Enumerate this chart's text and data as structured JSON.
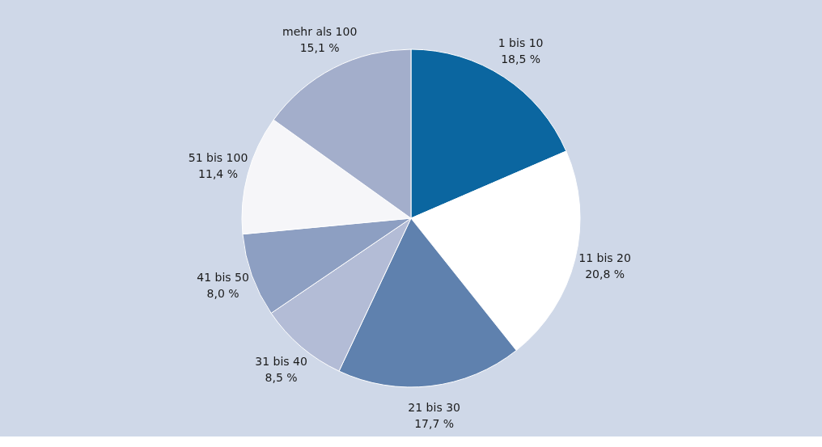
{
  "chart_data": {
    "type": "pie",
    "categories": [
      "1 bis 10",
      "11 bis 20",
      "21 bis 30",
      "31 bis 40",
      "41 bis 50",
      "51 bis 100",
      "mehr als 100"
    ],
    "values": [
      18.5,
      20.8,
      17.7,
      8.5,
      8.0,
      11.4,
      15.1
    ],
    "value_labels": [
      "18,5 %",
      "20,8 %",
      "17,7 %",
      "8,5 %",
      "8,0 %",
      "11,4 %",
      "15,1 %"
    ],
    "colors": [
      "#0b66a0",
      "#ffffff",
      "#5f81ae",
      "#b3bcd6",
      "#8d9fc2",
      "#f6f6f9",
      "#a3aecb"
    ]
  }
}
